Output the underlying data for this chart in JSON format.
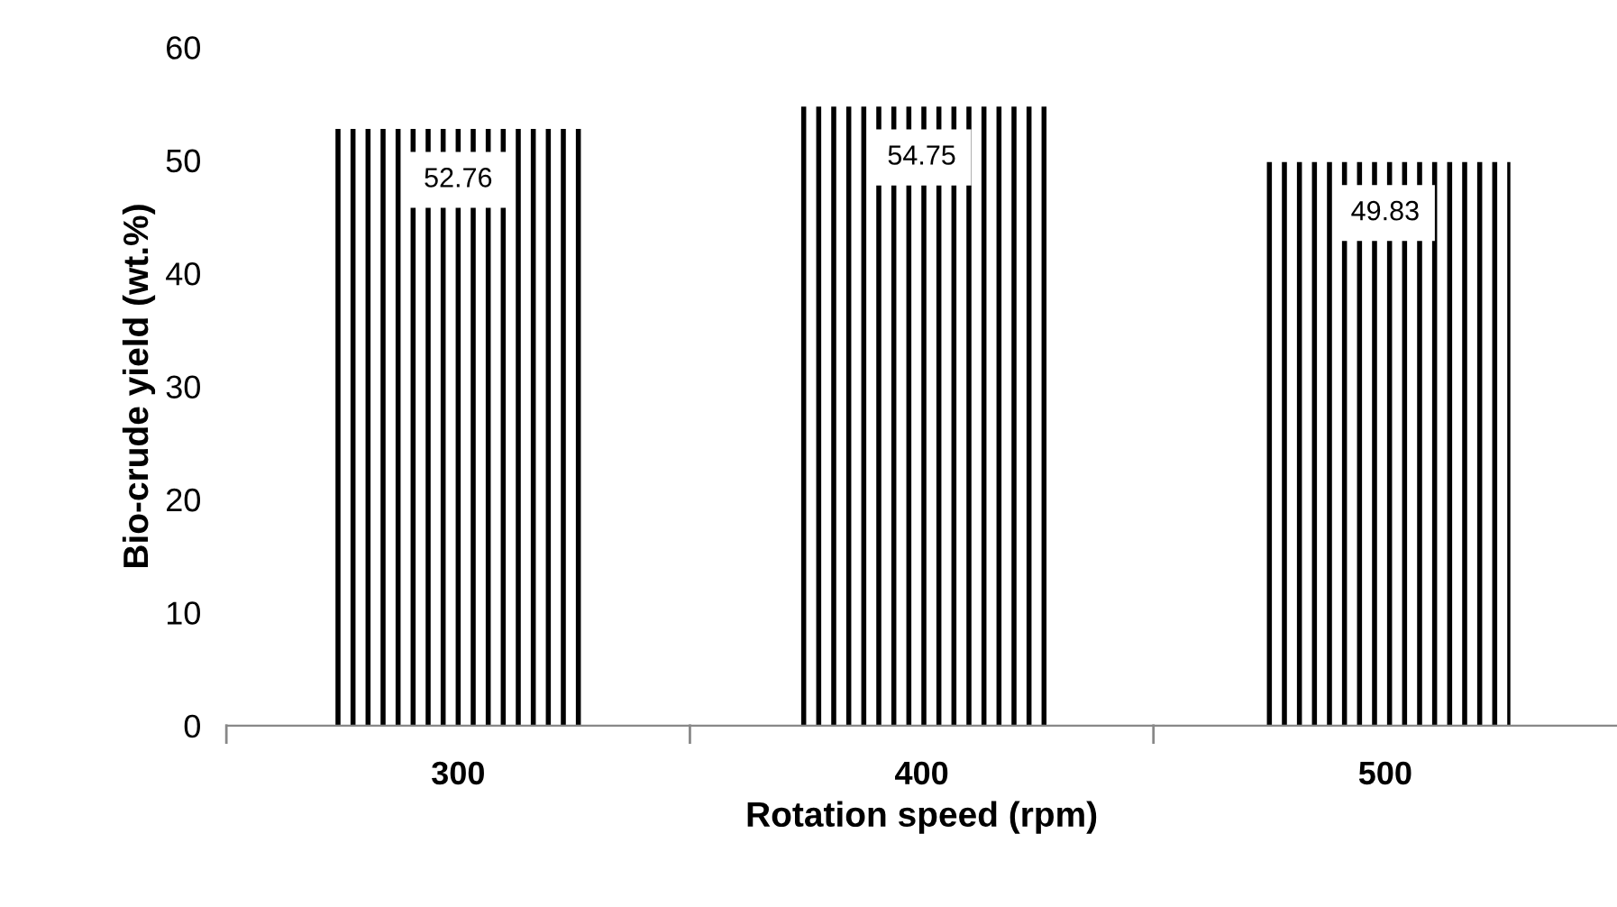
{
  "chart_data": {
    "type": "bar",
    "xlabel": "Rotation speed (rpm)",
    "ylabel": "Bio-crude yield (wt.%)",
    "categories": [
      "300",
      "400",
      "500"
    ],
    "values": [
      52.76,
      54.75,
      49.83
    ],
    "color": "#000000",
    "ylim": [
      0,
      60
    ],
    "yticks": [
      0,
      10,
      20,
      30,
      40,
      50,
      60
    ],
    "data_labels": true,
    "grid": false,
    "legend": false
  }
}
